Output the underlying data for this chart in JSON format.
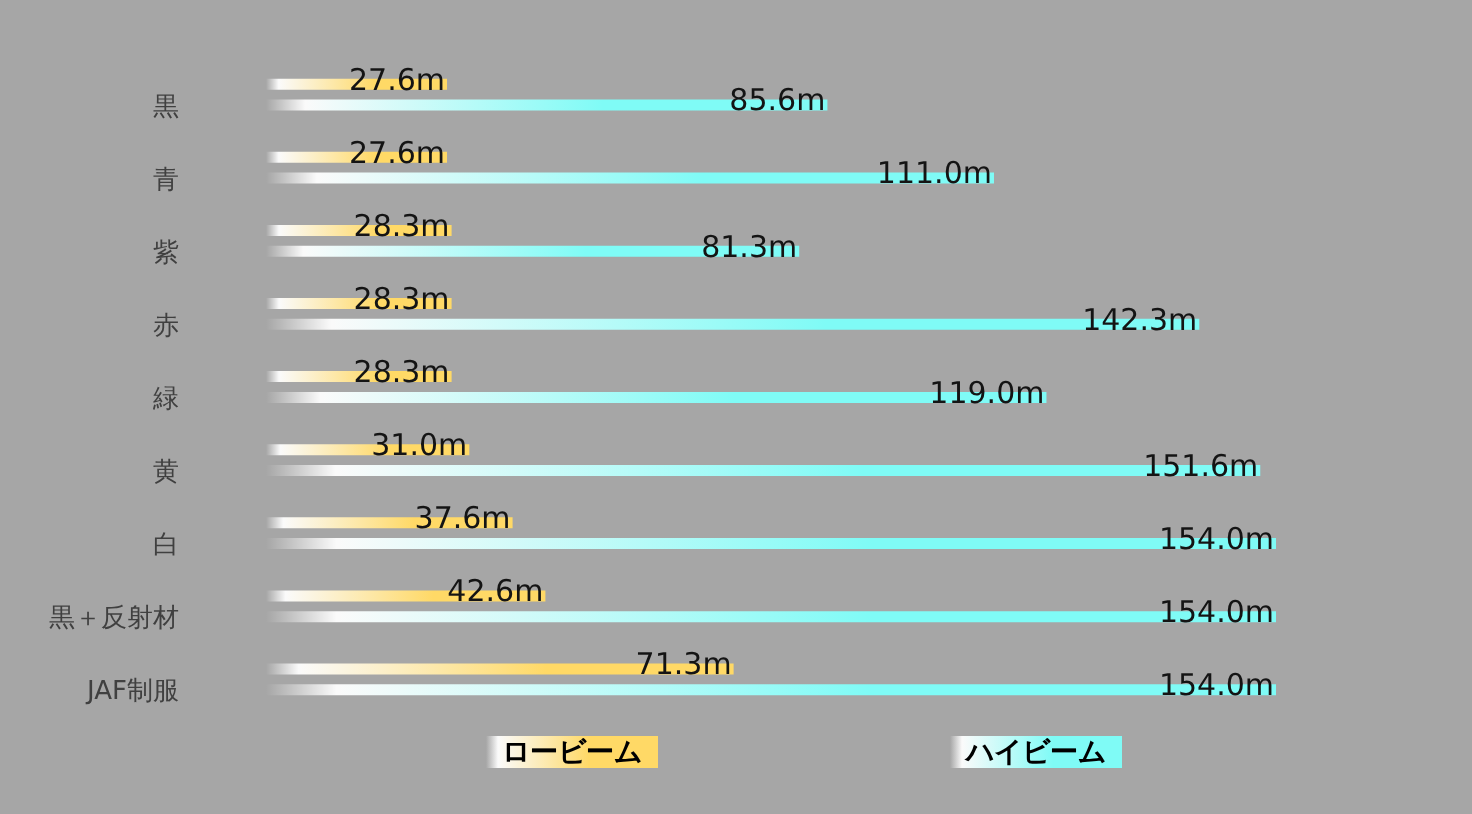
{
  "chart_data": {
    "type": "bar",
    "orientation": "horizontal",
    "categories": [
      "黒",
      "青",
      "紫",
      "赤",
      "緑",
      "黄",
      "白",
      "黒＋反射材",
      "JAF制服"
    ],
    "series": [
      {
        "name": "ロービーム",
        "color": "#ffd966",
        "values": [
          27.6,
          27.6,
          28.3,
          28.3,
          28.3,
          31.0,
          37.6,
          42.6,
          71.3
        ],
        "value_labels": [
          "27.6m",
          "27.6m",
          "28.3m",
          "28.3m",
          "28.3m",
          "31.0m",
          "37.6m",
          "42.6m",
          "71.3m"
        ]
      },
      {
        "name": "ハイビーム",
        "color": "#7ffbf6",
        "values": [
          85.6,
          111.0,
          81.3,
          142.3,
          119.0,
          151.6,
          154.0,
          154.0,
          154.0
        ],
        "value_labels": [
          "85.6m",
          "111.0m",
          "81.3m",
          "142.3m",
          "119.0m",
          "151.6m",
          "154.0m",
          "154.0m",
          "154.0m"
        ]
      }
    ],
    "legend": "bottom",
    "tick_labels": "y"
  }
}
